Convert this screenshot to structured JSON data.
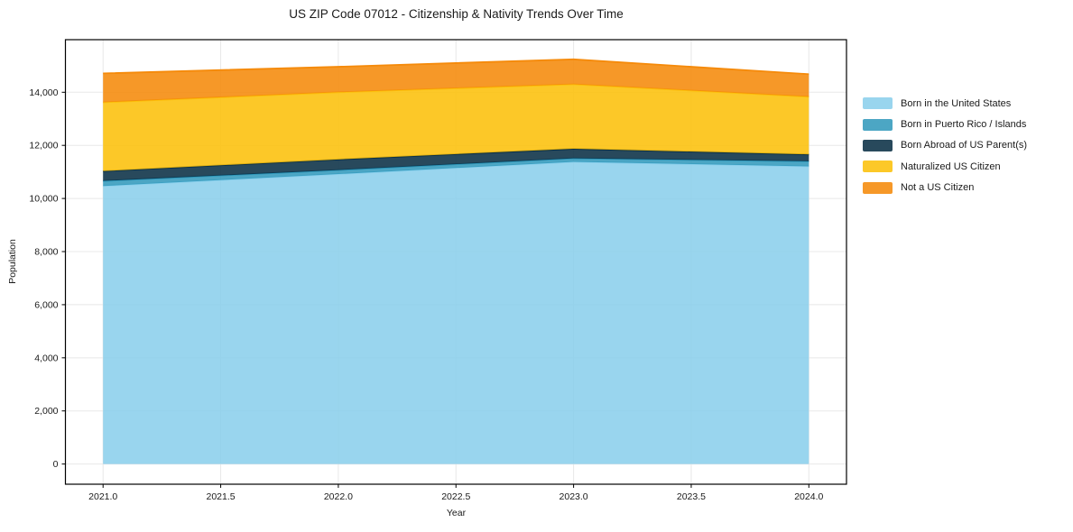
{
  "chart_data": {
    "type": "area",
    "stacked": true,
    "title": "US ZIP Code 07012 - Citizenship & Nativity Trends Over Time",
    "xlabel": "Year",
    "ylabel": "Population",
    "x": [
      2021,
      2022,
      2023,
      2024
    ],
    "series": [
      {
        "name": "Born in the United States",
        "values": [
          10470,
          10920,
          11380,
          11210
        ],
        "edge_color": "#87CEEB",
        "fill_color": "rgba(135,206,235,0.85)"
      },
      {
        "name": "Born in Puerto Rico / Islands",
        "values": [
          190,
          150,
          130,
          190
        ],
        "edge_color": "#2D97BA",
        "fill_color": "rgba(45,151,186,0.85)"
      },
      {
        "name": "Born Abroad of US Parent(s)",
        "values": [
          370,
          400,
          360,
          260
        ],
        "edge_color": "#0A3046",
        "fill_color": "rgba(10,48,70,0.88)"
      },
      {
        "name": "Naturalized US Citizen",
        "values": [
          2590,
          2530,
          2430,
          2170
        ],
        "edge_color": "#FCC00A",
        "fill_color": "rgba(252,192,10,0.88)"
      },
      {
        "name": "Not a US Citizen",
        "values": [
          1090,
          960,
          940,
          850
        ],
        "edge_color": "#F58A0A",
        "fill_color": "rgba(245,138,10,0.88)"
      }
    ],
    "stacked_totals": [
      14710,
      14960,
      15240,
      14680
    ],
    "xlim": [
      2020.84,
      2024.16
    ],
    "ylim": [
      -760,
      15980
    ],
    "xticks": [
      2021.0,
      2021.5,
      2022.0,
      2022.5,
      2023.0,
      2023.5,
      2024.0
    ],
    "xtick_labels": [
      "2021.0",
      "2021.5",
      "2022.0",
      "2022.5",
      "2023.0",
      "2023.5",
      "2024.0"
    ],
    "yticks": [
      0,
      2000,
      4000,
      6000,
      8000,
      10000,
      12000,
      14000
    ],
    "ytick_labels": [
      "0",
      "2,000",
      "4,000",
      "6,000",
      "8,000",
      "10,000",
      "12,000",
      "14,000"
    ],
    "grid": true,
    "grid_color": "#e8e8e8",
    "spine_color": "#000000",
    "tick_label_color": "#1a1a1a",
    "legend_position": "right"
  }
}
